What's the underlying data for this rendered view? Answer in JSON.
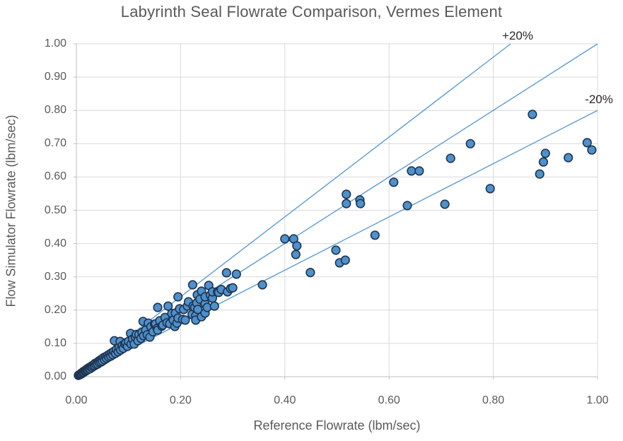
{
  "colors": {
    "accent_line": "#5B9BD5",
    "marker_fill": "#4E91CC",
    "marker_stroke": "#1F3550",
    "gridline": "#D9D9D9",
    "axis_line": "#BFBFBF",
    "text": "#595959",
    "annotation_text": "#262626",
    "background": "#FFFFFF"
  },
  "chart_data": {
    "type": "scatter",
    "title": "Labyrinth Seal Flowrate Comparison, Vermes Element",
    "xlabel": "Reference Flowrate (lbm/sec)",
    "ylabel": "Flow Simulator Flowrate (lbm/sec)",
    "xlim": [
      0.0,
      1.0
    ],
    "ylim": [
      0.0,
      1.0
    ],
    "grid": true,
    "legend": "none",
    "x_tick_values": [
      0.0,
      0.2,
      0.4,
      0.6,
      0.8,
      1.0
    ],
    "x_tick_labels": [
      "0.00",
      "0.20",
      "0.40",
      "0.60",
      "0.80",
      "1.00"
    ],
    "y_tick_values": [
      0.0,
      0.1,
      0.2,
      0.3,
      0.4,
      0.5,
      0.6,
      0.7,
      0.8,
      0.9,
      1.0
    ],
    "y_tick_labels": [
      "0.00",
      "0.10",
      "0.20",
      "0.30",
      "0.40",
      "0.50",
      "0.60",
      "0.70",
      "0.80",
      "0.90",
      "1.00"
    ],
    "ref_lines": [
      {
        "name": "plus-20-percent",
        "label": "+20%",
        "from": [
          0.0,
          0.0
        ],
        "to": [
          0.8333,
          1.0
        ],
        "label_anchor": [
          0.847,
          1.024
        ]
      },
      {
        "name": "one-to-one",
        "label": "",
        "from": [
          0.0,
          0.0
        ],
        "to": [
          1.0,
          1.0
        ],
        "label_anchor": null
      },
      {
        "name": "minus-20-percent",
        "label": "-20%",
        "from": [
          0.0,
          0.0
        ],
        "to": [
          1.0,
          0.8
        ],
        "label_anchor": [
          1.003,
          0.832
        ]
      }
    ],
    "series": [
      {
        "name": "flowrate-comparison-points",
        "points": [
          [
            0.004,
            0.004
          ],
          [
            0.006,
            0.006
          ],
          [
            0.008,
            0.007
          ],
          [
            0.009,
            0.01
          ],
          [
            0.01,
            0.009
          ],
          [
            0.012,
            0.012
          ],
          [
            0.013,
            0.015
          ],
          [
            0.014,
            0.013
          ],
          [
            0.016,
            0.016
          ],
          [
            0.017,
            0.019
          ],
          [
            0.018,
            0.017
          ],
          [
            0.02,
            0.02
          ],
          [
            0.021,
            0.024
          ],
          [
            0.022,
            0.021
          ],
          [
            0.024,
            0.025
          ],
          [
            0.025,
            0.028
          ],
          [
            0.026,
            0.024
          ],
          [
            0.028,
            0.029
          ],
          [
            0.03,
            0.033
          ],
          [
            0.03,
            0.028
          ],
          [
            0.032,
            0.032
          ],
          [
            0.034,
            0.037
          ],
          [
            0.035,
            0.033
          ],
          [
            0.036,
            0.04
          ],
          [
            0.038,
            0.036
          ],
          [
            0.04,
            0.043
          ],
          [
            0.041,
            0.038
          ],
          [
            0.043,
            0.047
          ],
          [
            0.044,
            0.042
          ],
          [
            0.046,
            0.05
          ],
          [
            0.047,
            0.044
          ],
          [
            0.049,
            0.053
          ],
          [
            0.05,
            0.047
          ],
          [
            0.052,
            0.057
          ],
          [
            0.054,
            0.051
          ],
          [
            0.056,
            0.06
          ],
          [
            0.058,
            0.055
          ],
          [
            0.06,
            0.064
          ],
          [
            0.062,
            0.059
          ],
          [
            0.064,
            0.068
          ],
          [
            0.066,
            0.062
          ],
          [
            0.068,
            0.072
          ],
          [
            0.07,
            0.066
          ],
          [
            0.072,
            0.076
          ],
          [
            0.073,
            0.108
          ],
          [
            0.075,
            0.07
          ],
          [
            0.077,
            0.082
          ],
          [
            0.08,
            0.075
          ],
          [
            0.082,
            0.088
          ],
          [
            0.084,
            0.106
          ],
          [
            0.085,
            0.08
          ],
          [
            0.088,
            0.093
          ],
          [
            0.09,
            0.085
          ],
          [
            0.093,
            0.099
          ],
          [
            0.095,
            0.102
          ],
          [
            0.098,
            0.091
          ],
          [
            0.1,
            0.106
          ],
          [
            0.104,
            0.13
          ],
          [
            0.105,
            0.098
          ],
          [
            0.108,
            0.113
          ],
          [
            0.111,
            0.098
          ],
          [
            0.113,
            0.119
          ],
          [
            0.115,
            0.127
          ],
          [
            0.118,
            0.108
          ],
          [
            0.12,
            0.126
          ],
          [
            0.124,
            0.115
          ],
          [
            0.126,
            0.133
          ],
          [
            0.128,
            0.166
          ],
          [
            0.129,
            0.123
          ],
          [
            0.133,
            0.14
          ],
          [
            0.136,
            0.126
          ],
          [
            0.138,
            0.161
          ],
          [
            0.141,
            0.119
          ],
          [
            0.143,
            0.15
          ],
          [
            0.147,
            0.135
          ],
          [
            0.15,
            0.158
          ],
          [
            0.152,
            0.159
          ],
          [
            0.155,
            0.145
          ],
          [
            0.156,
            0.208
          ],
          [
            0.156,
            0.14
          ],
          [
            0.16,
            0.168
          ],
          [
            0.164,
            0.152
          ],
          [
            0.166,
            0.155
          ],
          [
            0.17,
            0.178
          ],
          [
            0.174,
            0.162
          ],
          [
            0.176,
            0.212
          ],
          [
            0.179,
            0.159
          ],
          [
            0.183,
            0.19
          ],
          [
            0.186,
            0.17
          ],
          [
            0.189,
            0.151
          ],
          [
            0.19,
            0.191
          ],
          [
            0.193,
            0.161
          ],
          [
            0.195,
            0.176
          ],
          [
            0.195,
            0.24
          ],
          [
            0.198,
            0.204
          ],
          [
            0.204,
            0.172
          ],
          [
            0.206,
            0.202
          ],
          [
            0.209,
            0.17
          ],
          [
            0.213,
            0.212
          ],
          [
            0.215,
            0.225
          ],
          [
            0.222,
            0.187
          ],
          [
            0.223,
            0.276
          ],
          [
            0.224,
            0.212
          ],
          [
            0.227,
            0.208
          ],
          [
            0.229,
            0.183
          ],
          [
            0.229,
            0.17
          ],
          [
            0.231,
            0.221
          ],
          [
            0.232,
            0.246
          ],
          [
            0.233,
            0.202
          ],
          [
            0.237,
            0.233
          ],
          [
            0.24,
            0.18
          ],
          [
            0.24,
            0.257
          ],
          [
            0.247,
            0.191
          ],
          [
            0.247,
            0.219
          ],
          [
            0.247,
            0.24
          ],
          [
            0.251,
            0.208
          ],
          [
            0.254,
            0.274
          ],
          [
            0.257,
            0.245
          ],
          [
            0.261,
            0.236
          ],
          [
            0.261,
            0.255
          ],
          [
            0.265,
            0.212
          ],
          [
            0.271,
            0.255
          ],
          [
            0.273,
            0.253
          ],
          [
            0.278,
            0.262
          ],
          [
            0.288,
            0.312
          ],
          [
            0.29,
            0.255
          ],
          [
            0.296,
            0.265
          ],
          [
            0.3,
            0.267
          ],
          [
            0.307,
            0.308
          ],
          [
            0.357,
            0.276
          ],
          [
            0.4,
            0.414
          ],
          [
            0.417,
            0.414
          ],
          [
            0.421,
            0.367
          ],
          [
            0.423,
            0.393
          ],
          [
            0.449,
            0.313
          ],
          [
            0.498,
            0.38
          ],
          [
            0.505,
            0.342
          ],
          [
            0.516,
            0.35
          ],
          [
            0.518,
            0.52
          ],
          [
            0.518,
            0.548
          ],
          [
            0.544,
            0.531
          ],
          [
            0.545,
            0.52
          ],
          [
            0.573,
            0.425
          ],
          [
            0.609,
            0.584
          ],
          [
            0.635,
            0.514
          ],
          [
            0.643,
            0.618
          ],
          [
            0.658,
            0.618
          ],
          [
            0.707,
            0.518
          ],
          [
            0.718,
            0.656
          ],
          [
            0.756,
            0.7
          ],
          [
            0.794,
            0.565
          ],
          [
            0.875,
            0.788
          ],
          [
            0.889,
            0.609
          ],
          [
            0.896,
            0.645
          ],
          [
            0.9,
            0.671
          ],
          [
            0.944,
            0.658
          ],
          [
            0.98,
            0.703
          ],
          [
            0.989,
            0.681
          ]
        ]
      }
    ]
  }
}
